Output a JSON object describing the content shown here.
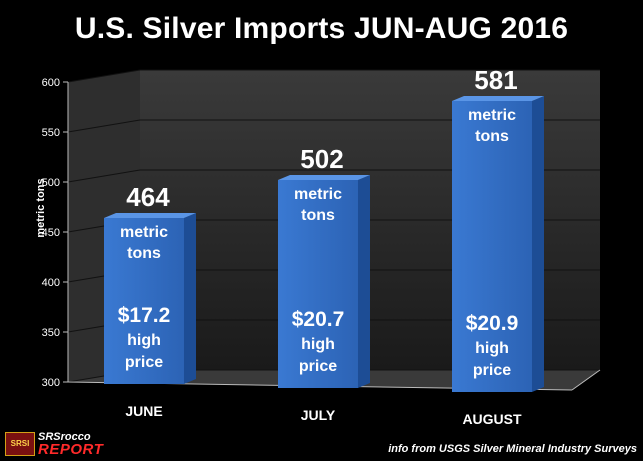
{
  "chart_data": {
    "type": "bar",
    "title": "U.S. Silver Imports JUN-AUG 2016",
    "ylabel": "metric tons",
    "xlabel": "",
    "ylim": [
      300,
      600
    ],
    "yticks": [
      300,
      350,
      400,
      450,
      500,
      550,
      600
    ],
    "grid": true,
    "categories": [
      "JUNE",
      "JULY",
      "AUGUST"
    ],
    "values": [
      464,
      502,
      581
    ],
    "unit_label": [
      "metric",
      "tons"
    ],
    "price_labels": [
      "$17.2",
      "$20.7",
      "$20.9"
    ],
    "price_caption": [
      "high",
      "price"
    ],
    "colors": {
      "bar_face": "#3a79d2",
      "bar_side": "#1d4d95",
      "bar_top": "#5a95e6",
      "background": "#000000",
      "wall": "#262626",
      "text": "#ffffff"
    }
  },
  "branding": {
    "logo_badge": "SRSI",
    "logo_line1": "SRSrocco",
    "logo_line2": "REPORT"
  },
  "source_note": "info from USGS Silver Mineral Industry Surveys"
}
